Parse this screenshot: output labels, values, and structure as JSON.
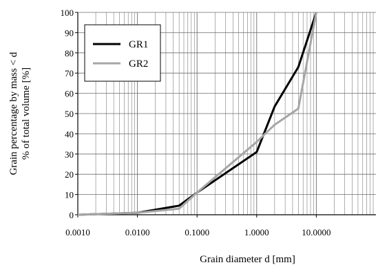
{
  "chart_data": {
    "type": "line",
    "xscale": "log",
    "xlim": [
      0.001,
      100
    ],
    "ylim": [
      0,
      100
    ],
    "xlabel": "Grain diameter d [mm]",
    "ylabel_lines": [
      "Grain percentage by mass < d",
      "% of total volume [%]"
    ],
    "x_ticks": [
      {
        "value": 0.001,
        "label": "0.0010"
      },
      {
        "value": 0.01,
        "label": "0.0100"
      },
      {
        "value": 0.1,
        "label": "0.1000"
      },
      {
        "value": 1,
        "label": "1.0000"
      },
      {
        "value": 10,
        "label": "10.0000"
      }
    ],
    "y_ticks": [
      0,
      10,
      20,
      30,
      40,
      50,
      60,
      70,
      80,
      90,
      100
    ],
    "grid": true,
    "legend_position": "top-left",
    "series": [
      {
        "name": "GR1",
        "color": "#000000",
        "points": [
          [
            0.001,
            0
          ],
          [
            0.002,
            0.3
          ],
          [
            0.01,
            1
          ],
          [
            0.05,
            4.5
          ],
          [
            0.1,
            11
          ],
          [
            1,
            31
          ],
          [
            2,
            53.5
          ],
          [
            5,
            73
          ],
          [
            10,
            100
          ]
        ]
      },
      {
        "name": "GR2",
        "color": "#a6a6a6",
        "points": [
          [
            0.001,
            0
          ],
          [
            0.002,
            0.3
          ],
          [
            0.01,
            1
          ],
          [
            0.05,
            3
          ],
          [
            0.1,
            11
          ],
          [
            1,
            36
          ],
          [
            2,
            44.5
          ],
          [
            5,
            52.5
          ],
          [
            10,
            100
          ]
        ]
      }
    ]
  }
}
